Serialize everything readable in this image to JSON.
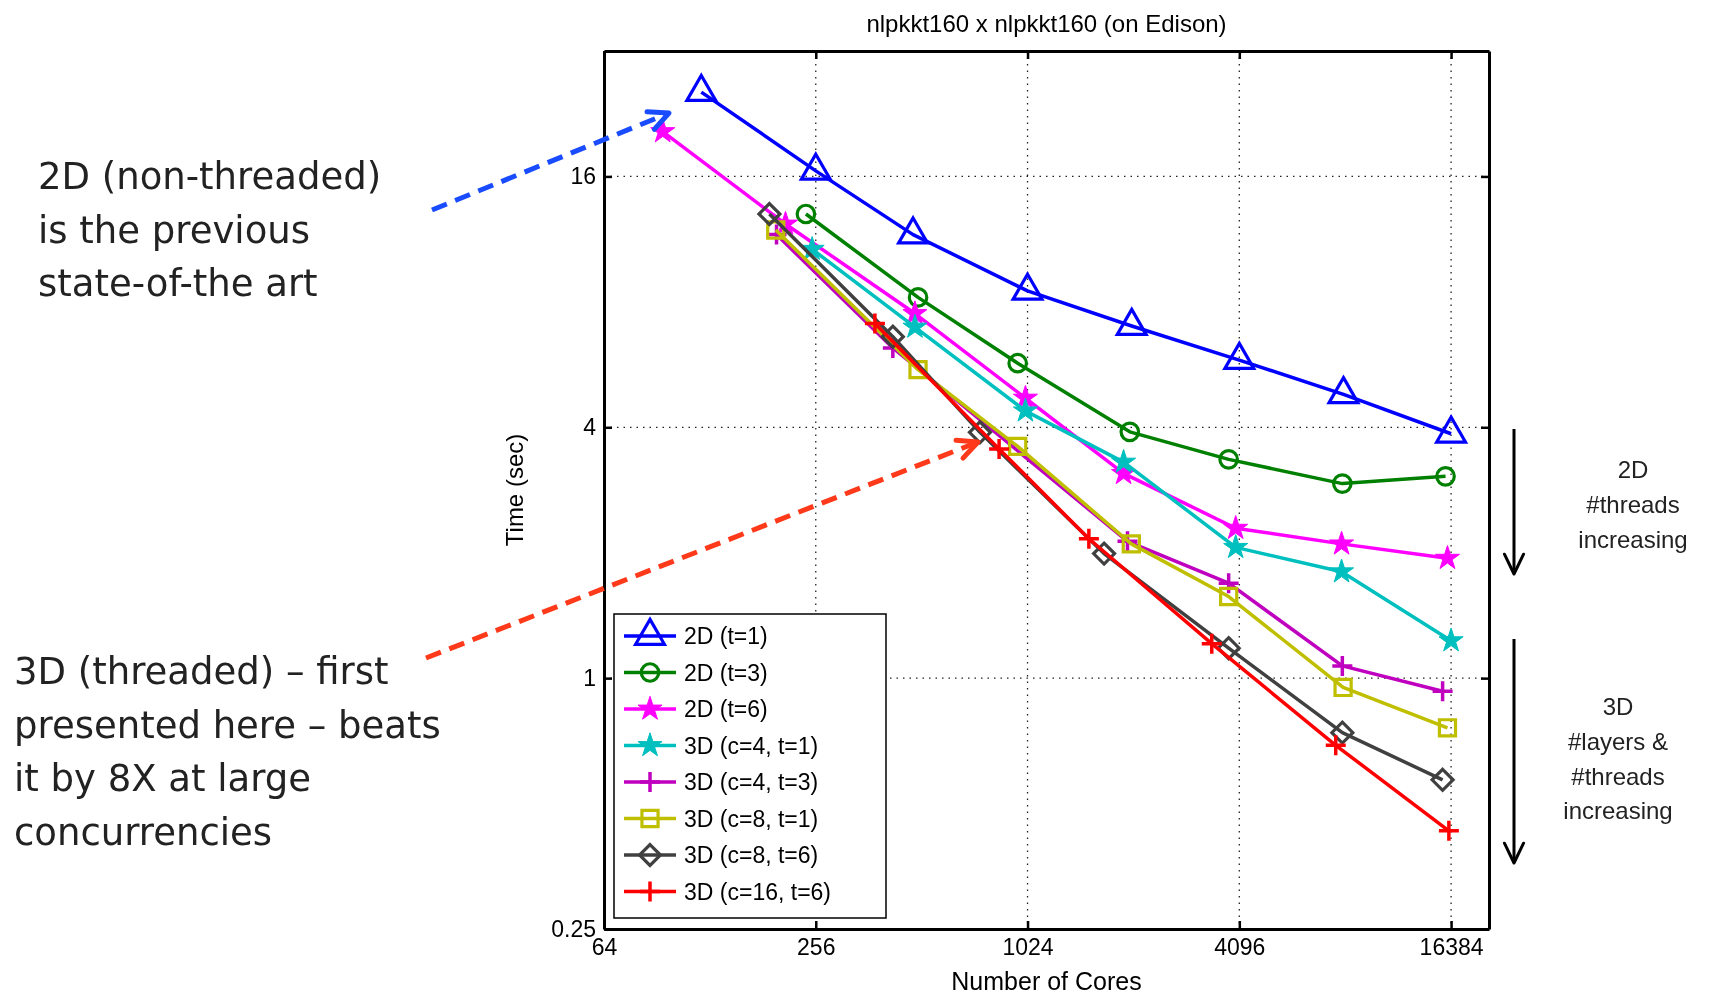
{
  "chart_data": {
    "type": "line",
    "title": "nlpkkt160 x nlpkkt160 (on Edison)",
    "xlabel": "Number of Cores",
    "ylabel": "Time (sec)",
    "log": "xy",
    "xlim": [
      64,
      21000
    ],
    "ylim": [
      0.25,
      32
    ],
    "xticks": [
      64,
      256,
      1024,
      4096,
      16384
    ],
    "yticks": [
      0.25,
      1,
      4,
      16
    ],
    "grid": true,
    "legend": "bottom left",
    "line_style": "solid",
    "series": [
      {
        "name": "2D (t=1)",
        "color": "#0000ff",
        "marker": "triangle",
        "x": [
          121,
          256,
          484,
          1024,
          2025,
          4096,
          8100,
          16384
        ],
        "values": [
          25.5,
          16.5,
          11.6,
          8.5,
          7.0,
          5.8,
          4.8,
          3.86
        ]
      },
      {
        "name": "2D (t=3)",
        "color": "#008000",
        "marker": "circle",
        "x": [
          240,
          500,
          960,
          2000,
          3820,
          8040,
          15800
        ],
        "values": [
          13.0,
          8.2,
          5.7,
          3.9,
          3.35,
          2.93,
          3.05
        ]
      },
      {
        "name": "2D (t=6)",
        "color": "#ff00ff",
        "marker": "star",
        "x": [
          94,
          210,
          490,
          1010,
          1920,
          4000,
          8000,
          16000
        ],
        "values": [
          20.5,
          12.3,
          7.5,
          4.7,
          3.1,
          2.29,
          2.1,
          1.94
        ]
      },
      {
        "name": "3D (c=4, t=1)",
        "color": "#00bfbf",
        "marker": "star",
        "x": [
          250,
          490,
          1010,
          1920,
          4000,
          8000,
          16384
        ],
        "values": [
          10.7,
          6.96,
          4.38,
          3.3,
          2.06,
          1.8,
          1.23
        ]
      },
      {
        "name": "3D (c=4, t=3)",
        "color": "#bf00bf",
        "marker": "cross",
        "x": [
          198,
          424,
          1970,
          3820,
          8040,
          15500
        ],
        "values": [
          11.6,
          6.2,
          2.13,
          1.69,
          1.07,
          0.93
        ]
      },
      {
        "name": "3D (c=8, t=1)",
        "color": "#bfbf00",
        "marker": "square",
        "x": [
          197,
          500,
          960,
          2020,
          3820,
          8080,
          16000
        ],
        "values": [
          11.9,
          5.5,
          3.6,
          2.1,
          1.57,
          0.95,
          0.76
        ]
      },
      {
        "name": "3D (c=8, t=6)",
        "color": "#404040",
        "marker": "diamond",
        "x": [
          189,
          424,
          750,
          1690,
          3820,
          8040,
          15500
        ],
        "values": [
          13.0,
          6.6,
          3.89,
          1.99,
          1.18,
          0.74,
          0.57
        ]
      },
      {
        "name": "3D (c=16, t=6)",
        "color": "#ff0000",
        "marker": "cross",
        "x": [
          377,
          850,
          1530,
          3420,
          7700,
          16150
        ],
        "values": [
          7.1,
          3.55,
          2.16,
          1.21,
          0.69,
          0.43
        ]
      }
    ],
    "annotations": [
      "2D (non-threaded) is the previous state-of-the art",
      "3D (threaded) – first presented here – beats it by 8X at large concurrencies",
      "2D #threads increasing",
      "3D #layers & #threads increasing"
    ]
  }
}
